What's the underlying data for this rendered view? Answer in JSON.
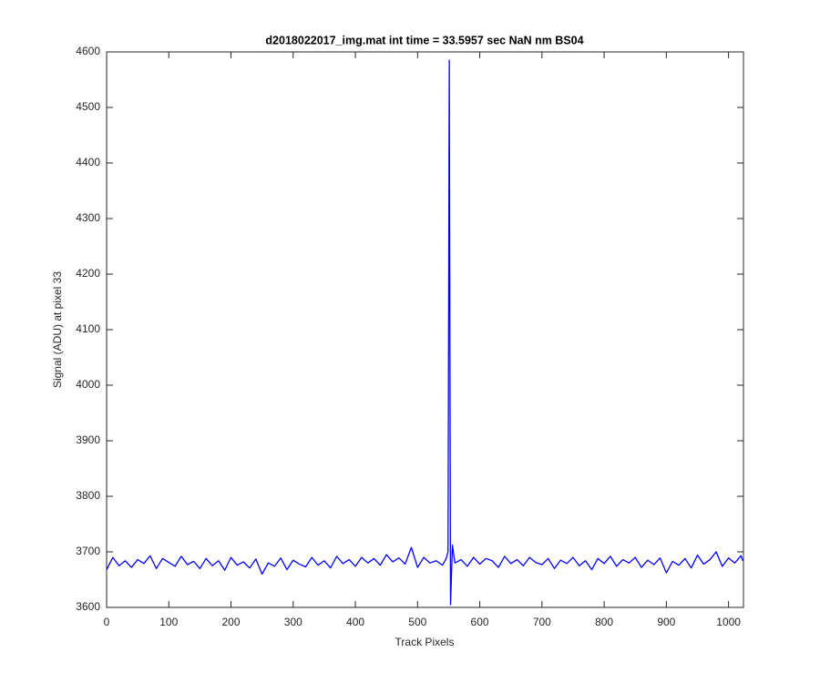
{
  "chart_data": {
    "type": "line",
    "title": "d2018022017_img.mat int time = 33.5957 sec  NaN nm BS04",
    "x_label": "Track Pixels",
    "y_label": "Signal (ADU) at pixel 33",
    "xlim": [
      0,
      1024
    ],
    "ylim": [
      3600,
      4600
    ],
    "xticks": [
      0,
      100,
      200,
      300,
      400,
      500,
      600,
      700,
      800,
      900,
      1000
    ],
    "yticks": [
      3600,
      3700,
      3800,
      3900,
      4000,
      4100,
      4200,
      4300,
      4400,
      4500,
      4600
    ],
    "grid": false,
    "series": [
      {
        "color": "#0000ff",
        "x": [
          0,
          10,
          20,
          30,
          40,
          50,
          60,
          70,
          80,
          90,
          100,
          110,
          120,
          130,
          140,
          150,
          160,
          170,
          180,
          190,
          200,
          210,
          220,
          230,
          240,
          250,
          260,
          270,
          280,
          290,
          300,
          310,
          320,
          330,
          340,
          350,
          360,
          370,
          380,
          390,
          400,
          410,
          420,
          430,
          440,
          450,
          460,
          470,
          480,
          490,
          500,
          510,
          520,
          530,
          540,
          546,
          549,
          551,
          553,
          556,
          560,
          570,
          580,
          590,
          600,
          610,
          620,
          630,
          640,
          650,
          660,
          670,
          680,
          690,
          700,
          710,
          720,
          730,
          740,
          750,
          760,
          770,
          780,
          790,
          800,
          810,
          820,
          830,
          840,
          850,
          860,
          870,
          880,
          890,
          900,
          910,
          920,
          930,
          940,
          950,
          960,
          970,
          980,
          990,
          1000,
          1010,
          1020,
          1023
        ],
        "values": [
          3668,
          3690,
          3675,
          3684,
          3672,
          3686,
          3679,
          3693,
          3670,
          3688,
          3681,
          3674,
          3692,
          3677,
          3683,
          3670,
          3688,
          3675,
          3684,
          3667,
          3690,
          3676,
          3682,
          3671,
          3687,
          3660,
          3680,
          3674,
          3689,
          3668,
          3685,
          3678,
          3673,
          3690,
          3676,
          3684,
          3671,
          3692,
          3679,
          3686,
          3674,
          3690,
          3680,
          3688,
          3676,
          3695,
          3682,
          3689,
          3678,
          3708,
          3672,
          3690,
          3680,
          3684,
          3676,
          3688,
          3700,
          4585,
          3605,
          3712,
          3680,
          3686,
          3674,
          3690,
          3678,
          3688,
          3684,
          3672,
          3692,
          3679,
          3686,
          3675,
          3690,
          3681,
          3677,
          3688,
          3670,
          3685,
          3679,
          3690,
          3675,
          3684,
          3668,
          3688,
          3679,
          3692,
          3674,
          3686,
          3680,
          3690,
          3672,
          3685,
          3677,
          3689,
          3662,
          3683,
          3676,
          3688,
          3671,
          3694,
          3678,
          3686,
          3700,
          3674,
          3689,
          3680,
          3693,
          3684
        ]
      }
    ]
  }
}
